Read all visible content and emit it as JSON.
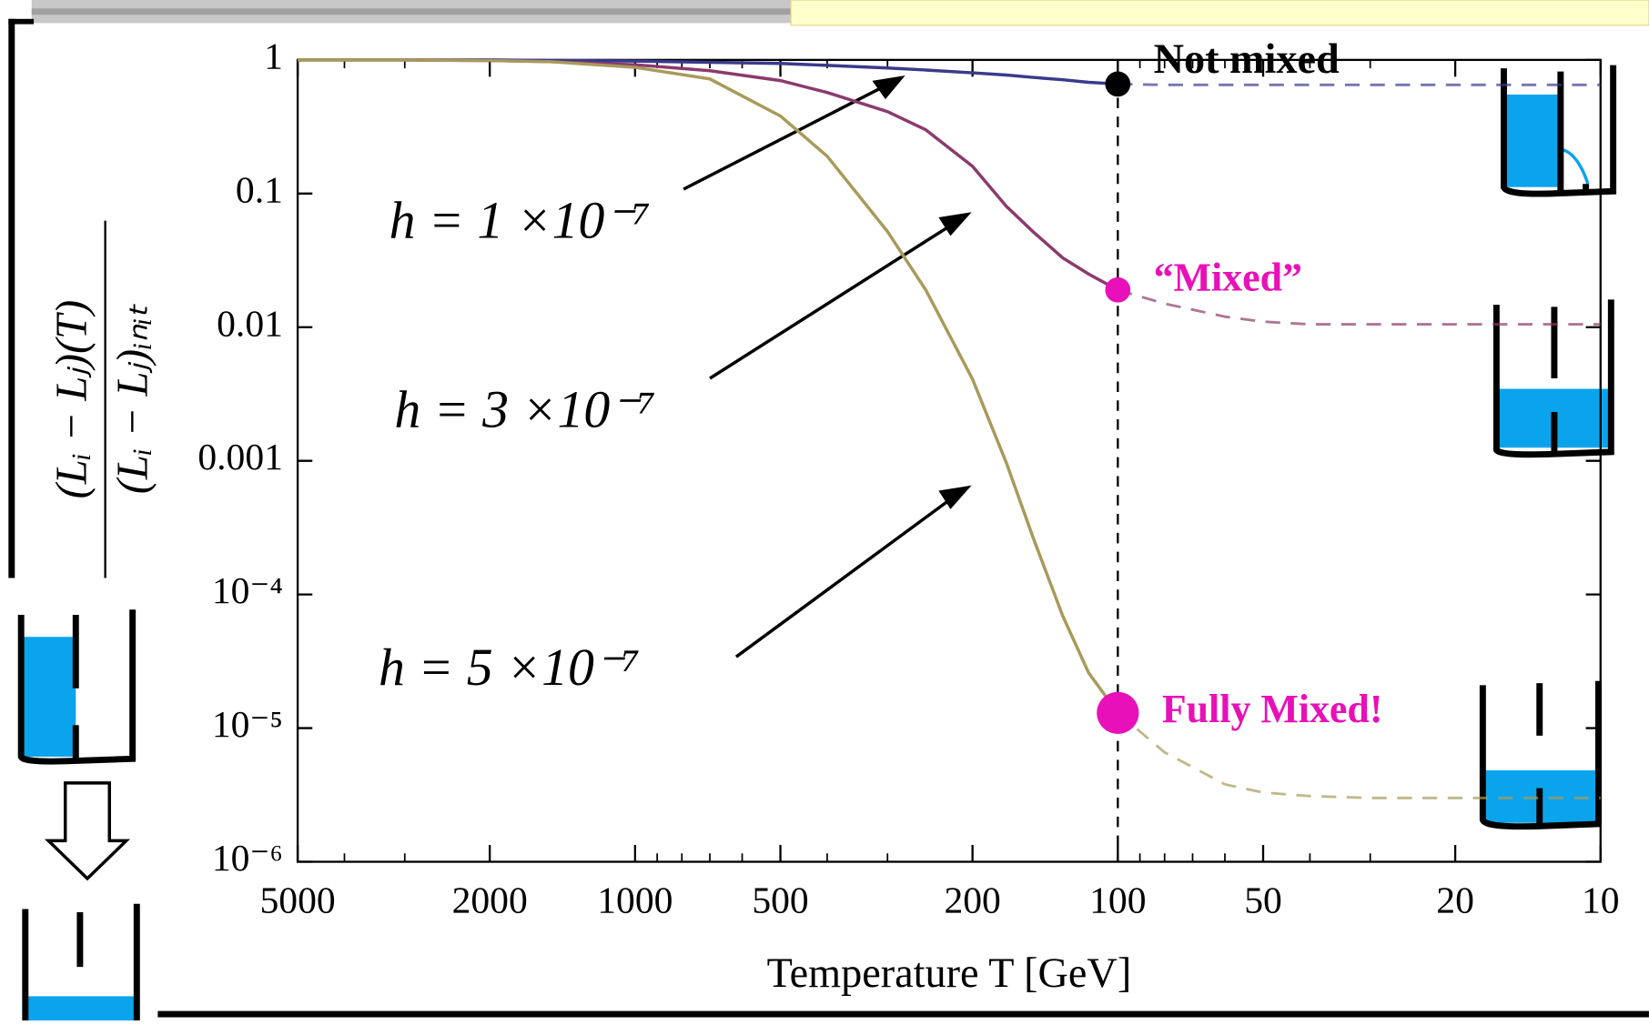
{
  "chart_data": {
    "type": "line",
    "xlabel": "Temperature T [GeV]",
    "ylabel": {
      "numerator": "(Lᵢ − Lⱼ)(T)",
      "denominator": "(Lᵢ − Lⱼ)ᵢₙᵢₜ"
    },
    "xscale": "log",
    "yscale": "log",
    "xlim": [
      5000,
      10
    ],
    "ylim": [
      1,
      1e-06
    ],
    "xticks": [
      5000,
      2000,
      1000,
      500,
      200,
      100,
      50,
      20,
      10
    ],
    "xminorticks": [
      4000,
      3000,
      900,
      800,
      700,
      600,
      400,
      300,
      90,
      80,
      70,
      60,
      40,
      30
    ],
    "yticks": [
      1,
      0.1,
      0.01,
      0.001,
      {
        "value": 0.0001,
        "label": "10⁻⁴"
      },
      {
        "value": 1e-05,
        "label": "10⁻⁵"
      },
      {
        "value": 1e-06,
        "label": "10⁻⁶"
      }
    ],
    "vline_x": 100,
    "dashed_below_x": 100,
    "x": [
      5000,
      3000,
      2000,
      1500,
      1000,
      700,
      500,
      400,
      300,
      250,
      200,
      170,
      150,
      130,
      115,
      100,
      80,
      60,
      50,
      40,
      30,
      20,
      15,
      10
    ],
    "series": [
      {
        "name": "h = 1 ×10⁻⁷",
        "color": "#3a3a8c",
        "values": [
          1,
          1,
          1,
          0.99,
          0.98,
          0.96,
          0.94,
          0.91,
          0.87,
          0.84,
          0.8,
          0.77,
          0.74,
          0.71,
          0.68,
          0.66,
          0.65,
          0.65,
          0.65,
          0.65,
          0.65,
          0.65,
          0.65,
          0.65
        ]
      },
      {
        "name": "h = 3 ×10⁻⁷",
        "color": "#8b3a6e",
        "values": [
          1,
          1,
          0.99,
          0.97,
          0.92,
          0.83,
          0.7,
          0.57,
          0.41,
          0.3,
          0.16,
          0.08,
          0.052,
          0.033,
          0.025,
          0.019,
          0.015,
          0.012,
          0.011,
          0.0105,
          0.0105,
          0.0105,
          0.0105,
          0.0105
        ]
      },
      {
        "name": "h = 5 ×10⁻⁷",
        "color": "#a89a5a",
        "values": [
          1,
          1,
          0.99,
          0.97,
          0.88,
          0.72,
          0.38,
          0.19,
          0.052,
          0.019,
          0.0041,
          0.00096,
          0.00027,
          6.9e-05,
          2.6e-05,
          1.3e-05,
          6.6e-06,
          3.8e-06,
          3.3e-06,
          3.1e-06,
          3e-06,
          3e-06,
          3e-06,
          3e-06
        ]
      }
    ],
    "points": [
      {
        "x": 100,
        "y": 0.66,
        "label": "Not mixed",
        "color": "#000000",
        "size": 12
      },
      {
        "x": 100,
        "y": 0.019,
        "label": "“Mixed”",
        "color": "#e810b8",
        "size": 12
      },
      {
        "x": 100,
        "y": 1.3e-05,
        "label": "Fully Mixed!",
        "color": "#e810b8",
        "size": 20
      }
    ]
  }
}
